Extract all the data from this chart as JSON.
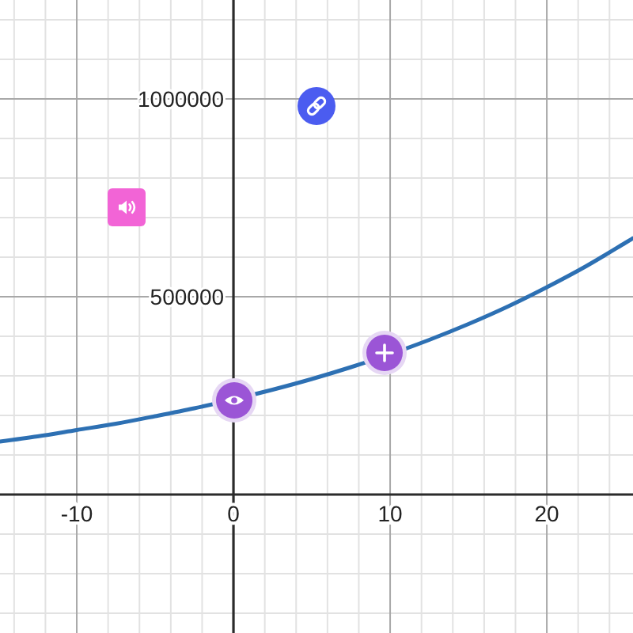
{
  "chart_data": {
    "type": "line",
    "x": [
      -14.9,
      -12.5,
      -10,
      -7.5,
      -5,
      -2.5,
      2.5,
      5,
      7.5,
      12.5,
      15,
      17.5,
      20,
      22.5,
      25,
      25.5
    ],
    "series": [
      {
        "color": "#2d70b3",
        "values": [
          134000,
          147000,
          163000,
          179000,
          198000,
          218000,
          265000,
          292000,
          322000,
          391000,
          431000,
          475000,
          524000,
          577000,
          636000,
          648000
        ]
      }
    ],
    "xlim": [
      -14.9,
      25.5
    ],
    "ylim": [
      -350000,
      1250000
    ],
    "xticks": [
      {
        "value": -14,
        "label": null
      },
      {
        "value": -12,
        "label": null
      },
      -10,
      {
        "value": -8,
        "label": null
      },
      {
        "value": -6,
        "label": null
      },
      {
        "value": -4,
        "label": null
      },
      {
        "value": -2,
        "label": null
      },
      0,
      {
        "value": 2,
        "label": null
      },
      {
        "value": 4,
        "label": null
      },
      {
        "value": 6,
        "label": null
      },
      {
        "value": 8,
        "label": null
      },
      10,
      {
        "value": 12,
        "label": null
      },
      {
        "value": 14,
        "label": null
      },
      {
        "value": 16,
        "label": null
      },
      {
        "value": 18,
        "label": null
      },
      20,
      {
        "value": 22,
        "label": null
      },
      {
        "value": 24,
        "label": null
      }
    ],
    "yticks": [
      {
        "value": -300000,
        "label": null
      },
      {
        "value": -200000,
        "label": null
      },
      {
        "value": -100000,
        "label": null
      },
      {
        "value": 0,
        "label": null
      },
      {
        "value": 100000,
        "label": null
      },
      {
        "value": 200000,
        "label": null
      },
      {
        "value": 300000,
        "label": null
      },
      {
        "value": 400000,
        "label": null
      },
      500000,
      {
        "value": 600000,
        "label": null
      },
      {
        "value": 700000,
        "label": null
      },
      {
        "value": 800000,
        "label": null
      },
      {
        "value": 900000,
        "label": null
      },
      1000000,
      {
        "value": 1100000,
        "label": null
      },
      {
        "value": 1200000,
        "label": null
      }
    ],
    "grid": true
  }
}
